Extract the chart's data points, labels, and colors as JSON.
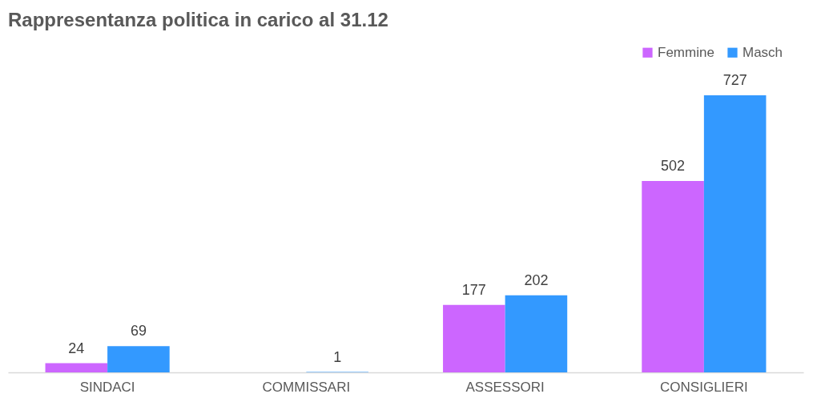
{
  "chart_data": {
    "type": "bar",
    "title": "Rappresentanza politica in carico al 31.12",
    "categories": [
      "SINDACI",
      "COMMISSARI",
      "ASSESSORI",
      "CONSIGLIERI"
    ],
    "series": [
      {
        "name": "Femmine",
        "color": "#cc66ff",
        "values": [
          24,
          null,
          177,
          502
        ]
      },
      {
        "name": "Masch",
        "color": "#3399ff",
        "values": [
          69,
          1,
          202,
          727
        ]
      }
    ],
    "data_labels": true,
    "legend": "top right",
    "grid": false
  }
}
